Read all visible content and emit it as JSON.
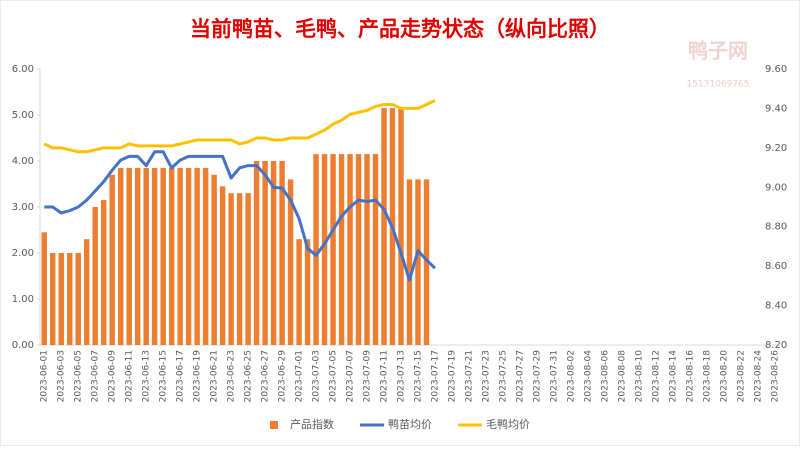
{
  "chart_data": {
    "type": "bar-line",
    "title": "当前鸭苗、毛鸭、产品走势状态（纵向比照）",
    "watermark": "鸭子网",
    "watermark_phone": "15131069765",
    "categories": [
      "2023-06-01",
      null,
      "2023-06-03",
      null,
      "2023-06-05",
      null,
      "2023-06-07",
      null,
      "2023-06-09",
      null,
      "2023-06-11",
      null,
      "2023-06-13",
      null,
      "2023-06-15",
      null,
      "2023-06-17",
      null,
      "2023-06-19",
      null,
      "2023-06-21",
      null,
      "2023-06-23",
      null,
      "2023-06-25",
      null,
      "2023-06-27",
      null,
      "2023-06-29",
      null,
      "2023-07-01",
      null,
      "2023-07-03",
      null,
      "2023-07-05",
      null,
      "2023-07-07",
      null,
      "2023-07-09",
      null,
      "2023-07-11",
      null,
      "2023-07-13",
      null,
      "2023-07-15",
      null,
      "2023-07-17",
      null,
      "2023-07-19",
      null,
      "2023-07-21",
      null,
      "2023-07-23",
      null,
      "2023-07-25",
      null,
      "2023-07-27",
      null,
      "2023-07-29",
      null,
      "2023-07-31",
      null,
      "2023-08-02",
      null,
      "2023-08-04",
      null,
      "2023-08-06",
      null,
      "2023-08-08",
      null,
      "2023-08-10",
      null,
      "2023-08-12",
      null,
      "2023-08-14",
      null,
      "2023-08-16",
      null,
      "2023-08-18",
      null,
      "2023-08-20",
      null,
      "2023-08-22",
      null,
      "2023-08-24",
      null,
      "2023-08-26"
    ],
    "series": [
      {
        "name": "产品指数",
        "kind": "bar",
        "color": "#ed7d31",
        "values": [
          2.45,
          2.0,
          2.0,
          2.0,
          2.0,
          2.3,
          3.0,
          3.15,
          3.7,
          3.85,
          3.85,
          3.85,
          3.85,
          3.85,
          3.85,
          3.85,
          3.85,
          3.85,
          3.85,
          3.85,
          3.7,
          3.45,
          3.3,
          3.3,
          3.3,
          4.0,
          4.0,
          4.0,
          4.0,
          3.6,
          2.3,
          2.3,
          4.15,
          4.15,
          4.15,
          4.15,
          4.15,
          4.15,
          4.15,
          4.15,
          5.15,
          5.15,
          5.15,
          3.6,
          3.6,
          3.6,
          null,
          null,
          null,
          null,
          null,
          null,
          null,
          null,
          null,
          null,
          null,
          null,
          null,
          null,
          null,
          null,
          null,
          null,
          null,
          null,
          null,
          null,
          null,
          null,
          null,
          null,
          null,
          null,
          null,
          null,
          null,
          null,
          null,
          null,
          null,
          null,
          null,
          null,
          null,
          null,
          null
        ]
      },
      {
        "name": "鸭苗均价",
        "kind": "line",
        "color": "#4472c4",
        "values": [
          3.0,
          3.0,
          2.87,
          2.92,
          3.0,
          3.15,
          3.35,
          3.55,
          3.8,
          4.02,
          4.1,
          4.1,
          3.9,
          4.2,
          4.2,
          3.85,
          4.02,
          4.1,
          4.1,
          4.1,
          4.1,
          4.1,
          3.63,
          3.85,
          3.9,
          3.9,
          3.7,
          3.43,
          3.41,
          3.15,
          2.75,
          2.1,
          1.95,
          2.2,
          2.5,
          2.8,
          3.0,
          3.15,
          3.12,
          3.15,
          2.95,
          2.55,
          2.0,
          1.41,
          2.05,
          1.85,
          1.67,
          null,
          null,
          null,
          null,
          null,
          null,
          null,
          null,
          null,
          null,
          null,
          null,
          null,
          null,
          null,
          null,
          null,
          null,
          null,
          null,
          null,
          null,
          null,
          null,
          null,
          null,
          null,
          null,
          null,
          null,
          null,
          null,
          null,
          null,
          null,
          null,
          null,
          null,
          null,
          null
        ]
      },
      {
        "name": "毛鸭均价",
        "kind": "line",
        "axis": "y2",
        "color": "#ffc000",
        "values": [
          9.22,
          9.2,
          9.2,
          9.19,
          9.18,
          9.18,
          9.19,
          9.2,
          9.2,
          9.2,
          9.22,
          9.21,
          9.21,
          9.21,
          9.21,
          9.21,
          9.22,
          9.23,
          9.24,
          9.24,
          9.24,
          9.24,
          9.24,
          9.22,
          9.23,
          9.25,
          9.25,
          9.24,
          9.24,
          9.25,
          9.25,
          9.25,
          9.27,
          9.29,
          9.32,
          9.34,
          9.37,
          9.38,
          9.39,
          9.41,
          9.42,
          9.42,
          9.4,
          9.4,
          9.4,
          9.42,
          9.44,
          null,
          null,
          null,
          null,
          null,
          null,
          null,
          null,
          null,
          null,
          null,
          null,
          null,
          null,
          null,
          null,
          null,
          null,
          null,
          null,
          null,
          null,
          null,
          null,
          null,
          null,
          null,
          null,
          null,
          null,
          null,
          null,
          null,
          null,
          null,
          null,
          null,
          null,
          null,
          null
        ]
      }
    ],
    "ylim": [
      0,
      6
    ],
    "yticks": [
      {
        "value": 0,
        "label": "0.00"
      },
      {
        "value": 1,
        "label": "1.00"
      },
      {
        "value": 2,
        "label": "2.00"
      },
      {
        "value": 3,
        "label": "3.00"
      },
      {
        "value": 4,
        "label": "4.00"
      },
      {
        "value": 5,
        "label": "5.00"
      },
      {
        "value": 6,
        "label": "6.00"
      }
    ],
    "y2lim": [
      8.2,
      9.6
    ],
    "y2ticks": [
      {
        "value": 8.2,
        "label": "8.20"
      },
      {
        "value": 8.4,
        "label": "8.40"
      },
      {
        "value": 8.6,
        "label": "8.60"
      },
      {
        "value": 8.8,
        "label": "8.80"
      },
      {
        "value": 9.0,
        "label": "9.00"
      },
      {
        "value": 9.2,
        "label": "9.20"
      },
      {
        "value": 9.4,
        "label": "9.40"
      },
      {
        "value": 9.6,
        "label": "9.60"
      }
    ],
    "grid": false,
    "legend": "bottom"
  }
}
